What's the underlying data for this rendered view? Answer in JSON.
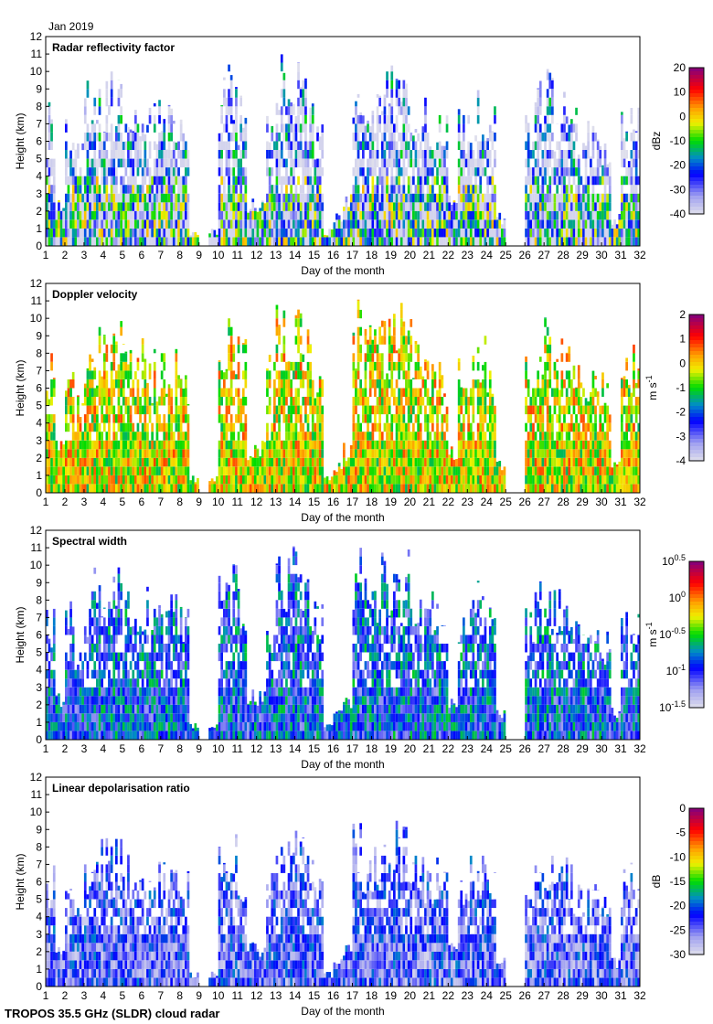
{
  "header": {
    "month_label": "Jan 2019"
  },
  "footer": {
    "instrument": "TROPOS 35.5 GHz (SLDR) cloud radar"
  },
  "chart_data": {
    "type": "heatmap",
    "x_label": "Day of the month",
    "y_label": "Height (km)",
    "xlim": [
      1,
      32
    ],
    "ylim": [
      0,
      12
    ],
    "x_ticks": [
      1,
      2,
      3,
      4,
      5,
      6,
      7,
      8,
      9,
      10,
      11,
      12,
      13,
      14,
      15,
      16,
      17,
      18,
      19,
      20,
      21,
      22,
      23,
      24,
      25,
      26,
      27,
      28,
      29,
      30,
      31,
      32
    ],
    "y_ticks": [
      0,
      1,
      2,
      3,
      4,
      5,
      6,
      7,
      8,
      9,
      10,
      11,
      12
    ],
    "approx_cloud_top_km_half_day_from_day1": [
      8.5,
      3,
      8,
      6,
      9.5,
      10,
      10.5,
      10,
      9,
      8.5,
      9,
      8.5,
      8.5,
      8.5,
      8,
      1,
      0,
      1,
      10,
      10.5,
      9,
      3,
      3,
      8,
      11,
      11.5,
      11,
      10,
      8,
      1,
      2,
      3,
      11.5,
      10,
      10,
      11,
      11.5,
      11,
      10,
      9,
      9,
      8,
      3,
      8,
      9,
      10,
      8,
      2,
      0,
      0,
      8,
      10.5,
      10.5,
      9,
      9,
      8,
      8,
      7,
      7,
      2,
      8,
      9
    ],
    "panels": [
      {
        "title": "Radar reflectivity factor",
        "units": "dBz",
        "units_sup": "",
        "cbar_ticks": [
          {
            "b": "20",
            "e": ""
          },
          {
            "b": "10",
            "e": ""
          },
          {
            "b": "0",
            "e": ""
          },
          {
            "b": "-10",
            "e": ""
          },
          {
            "b": "-20",
            "e": ""
          },
          {
            "b": "-30",
            "e": ""
          },
          {
            "b": "-40",
            "e": ""
          }
        ],
        "range": [
          -40,
          20
        ]
      },
      {
        "title": "Doppler velocity",
        "units": "m s",
        "units_sup": "-1",
        "cbar_ticks": [
          {
            "b": "2",
            "e": ""
          },
          {
            "b": "1",
            "e": ""
          },
          {
            "b": "0",
            "e": ""
          },
          {
            "b": "-1",
            "e": ""
          },
          {
            "b": "-2",
            "e": ""
          },
          {
            "b": "-3",
            "e": ""
          },
          {
            "b": "-4",
            "e": ""
          }
        ],
        "range": [
          -4,
          2
        ]
      },
      {
        "title": "Spectral width",
        "units": "m s",
        "units_sup": "-1",
        "cbar_ticks": [
          {
            "b": "10",
            "e": "0.5"
          },
          {
            "b": "10",
            "e": "0"
          },
          {
            "b": "10",
            "e": "-0.5"
          },
          {
            "b": "10",
            "e": "-1"
          },
          {
            "b": "10",
            "e": "-1.5"
          }
        ],
        "range": [
          -1.5,
          0.5
        ]
      },
      {
        "title": "Linear depolarisation ratio",
        "units": "dB",
        "units_sup": "",
        "cbar_ticks": [
          {
            "b": "0",
            "e": ""
          },
          {
            "b": "-5",
            "e": ""
          },
          {
            "b": "-10",
            "e": ""
          },
          {
            "b": "-15",
            "e": ""
          },
          {
            "b": "-20",
            "e": ""
          },
          {
            "b": "-25",
            "e": ""
          },
          {
            "b": "-30",
            "e": ""
          }
        ],
        "range": [
          -30,
          0
        ]
      }
    ]
  }
}
